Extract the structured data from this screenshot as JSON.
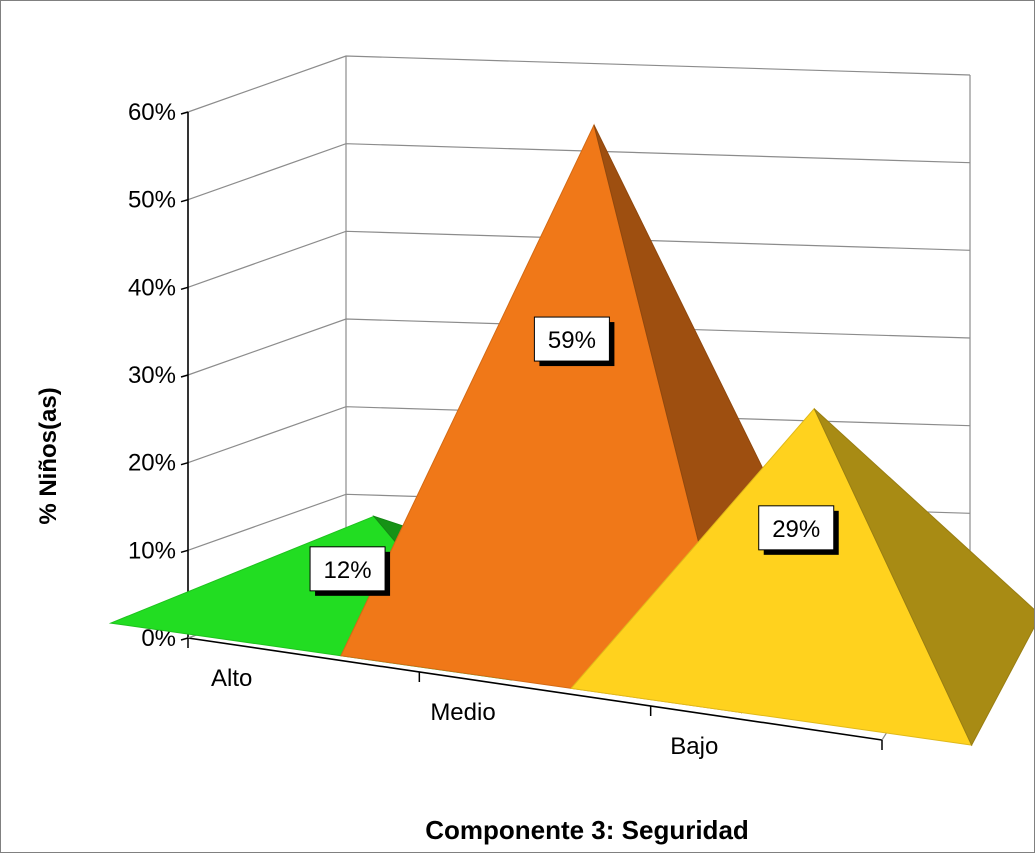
{
  "chart_data": {
    "type": "bar",
    "style": "3d-pyramid",
    "title": "Componente 3: Seguridad",
    "xlabel": "",
    "ylabel": "% Niños(as)",
    "categories": [
      "Alto",
      "Medio",
      "Bajo"
    ],
    "values": [
      12,
      59,
      29
    ],
    "value_labels": [
      "12%",
      "59%",
      "29%"
    ],
    "ylim": [
      0,
      60
    ],
    "yticks": [
      "0%",
      "10%",
      "20%",
      "30%",
      "40%",
      "50%",
      "60%"
    ],
    "grid": true,
    "legend": "none",
    "colors": [
      "#22dd22",
      "#f07818",
      "#ffd21e"
    ]
  }
}
